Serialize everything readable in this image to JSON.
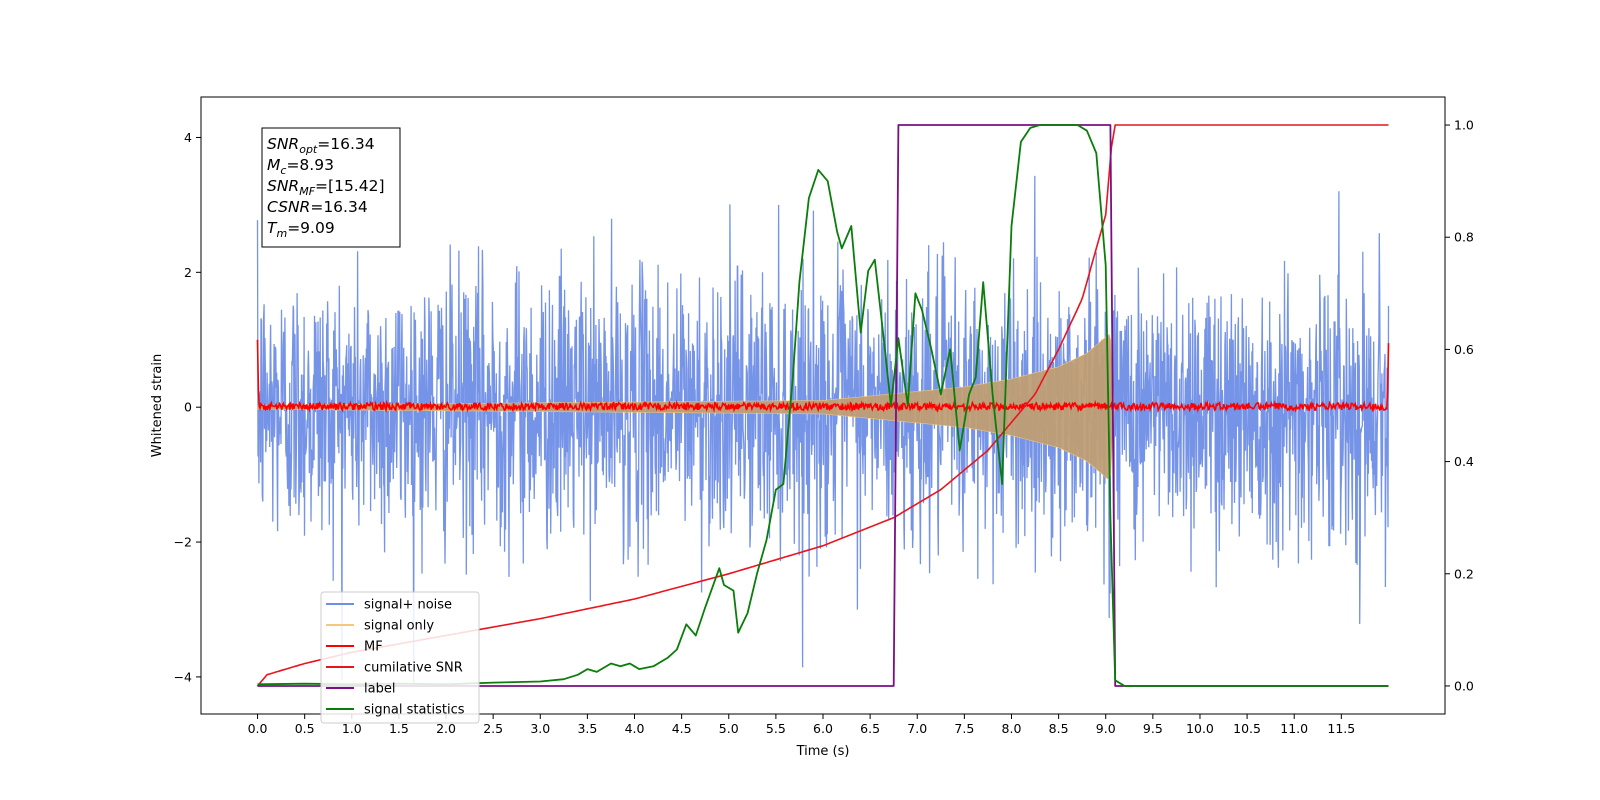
{
  "chart_data": {
    "type": "line",
    "xlabel": "Time (s)",
    "ylabel": "Whitened strain",
    "xlim": [
      -0.6,
      12.6
    ],
    "ylim": [
      -4.55,
      4.6
    ],
    "y2lim": [
      -0.05,
      1.05
    ],
    "xticks": [
      "0.0",
      "0.5",
      "1.0",
      "1.5",
      "2.0",
      "2.5",
      "3.0",
      "3.5",
      "4.0",
      "4.5",
      "5.0",
      "5.5",
      "6.0",
      "6.5",
      "7.0",
      "7.5",
      "8.0",
      "8.5",
      "9.0",
      "9.5",
      "10.0",
      "10.5",
      "11.0",
      "11.5"
    ],
    "yticks": [
      "-4",
      "-2",
      "0",
      "2",
      "4"
    ],
    "y2ticks": [
      "0.0",
      "0.2",
      "0.4",
      "0.6",
      "0.8",
      "1.0"
    ],
    "grid": false,
    "legend_position": "lower-left",
    "annotation": {
      "lines": [
        {
          "main": "SNR",
          "sub": "opt",
          "rest": "=16.34"
        },
        {
          "main": "M",
          "sub": "c",
          "rest": "=8.93"
        },
        {
          "main": "SNR",
          "sub": "MF",
          "rest": "=[15.42]"
        },
        {
          "main": "CSNR",
          "sub": "",
          "rest": "=16.34"
        },
        {
          "main": "T",
          "sub": "m",
          "rest": "=9.09"
        }
      ]
    },
    "series": [
      {
        "name": "signal+ noise",
        "axis": "left",
        "color": "#6f8ee6",
        "x_range": [
          0.0,
          12.0
        ],
        "noise_sigma": 1.0,
        "y_range_observed": [
          -4.1,
          4.15
        ]
      },
      {
        "name": "signal only",
        "axis": "left",
        "color": "#f5c77a",
        "fill_color": "#bf9f74",
        "chirp_start": 0.0,
        "merger_time": 9.09,
        "envelope": {
          "x": [
            0.0,
            6.0,
            6.75,
            7.5,
            8.0,
            8.5,
            8.8,
            9.05,
            9.09
          ],
          "y": [
            0.03,
            0.1,
            0.2,
            0.3,
            0.42,
            0.6,
            0.8,
            1.1,
            0.0
          ]
        }
      },
      {
        "name": "MF",
        "axis": "left",
        "color": "#ff0000",
        "x_range": [
          0.0,
          12.0
        ],
        "baseline": 0.0,
        "noise_amp": 0.05,
        "edge_values": {
          "start": 1.0,
          "end": 0.95
        }
      },
      {
        "name": "cumilative SNR",
        "axis": "right",
        "color": "#e8141e",
        "x": [
          0.0,
          0.1,
          0.5,
          1.0,
          2.0,
          3.0,
          4.0,
          5.0,
          6.0,
          6.75,
          7.25,
          7.75,
          8.25,
          8.5,
          8.75,
          9.0,
          9.06,
          9.1,
          12.0
        ],
        "y": [
          0.0,
          0.02,
          0.04,
          0.06,
          0.09,
          0.12,
          0.155,
          0.2,
          0.25,
          0.3,
          0.35,
          0.42,
          0.52,
          0.6,
          0.69,
          0.84,
          0.96,
          1.0,
          1.0
        ]
      },
      {
        "name": "label",
        "axis": "right",
        "color": "#7b0f82",
        "x": [
          0.0,
          6.75,
          6.8,
          9.05,
          9.1,
          12.0
        ],
        "y": [
          0.0,
          0.0,
          1.0,
          1.0,
          0.0,
          0.0
        ]
      },
      {
        "name": "signal statistics",
        "axis": "right",
        "color": "#0a7d0a",
        "x": [
          0.0,
          0.5,
          1.0,
          1.5,
          2.0,
          2.5,
          3.0,
          3.25,
          3.4,
          3.5,
          3.6,
          3.75,
          3.85,
          3.95,
          4.05,
          4.2,
          4.35,
          4.45,
          4.55,
          4.65,
          4.75,
          4.9,
          4.95,
          5.05,
          5.1,
          5.2,
          5.3,
          5.4,
          5.5,
          5.58,
          5.68,
          5.75,
          5.85,
          5.95,
          6.05,
          6.15,
          6.2,
          6.3,
          6.4,
          6.48,
          6.55,
          6.65,
          6.72,
          6.8,
          6.9,
          6.98,
          7.05,
          7.15,
          7.25,
          7.35,
          7.45,
          7.55,
          7.62,
          7.7,
          7.8,
          7.9,
          8.0,
          8.1,
          8.2,
          8.3,
          8.4,
          8.5,
          8.6,
          8.7,
          8.8,
          8.9,
          9.0,
          9.05,
          9.1,
          9.2,
          12.0
        ],
        "y": [
          0.003,
          0.004,
          0.003,
          0.004,
          0.003,
          0.006,
          0.008,
          0.012,
          0.02,
          0.03,
          0.025,
          0.04,
          0.035,
          0.04,
          0.03,
          0.035,
          0.05,
          0.065,
          0.11,
          0.09,
          0.14,
          0.21,
          0.18,
          0.17,
          0.095,
          0.13,
          0.2,
          0.26,
          0.35,
          0.36,
          0.55,
          0.72,
          0.87,
          0.92,
          0.9,
          0.81,
          0.78,
          0.82,
          0.63,
          0.74,
          0.76,
          0.61,
          0.5,
          0.62,
          0.5,
          0.7,
          0.67,
          0.6,
          0.52,
          0.6,
          0.42,
          0.52,
          0.55,
          0.72,
          0.52,
          0.36,
          0.82,
          0.97,
          0.995,
          1.0,
          1.0,
          1.0,
          1.0,
          1.0,
          0.99,
          0.95,
          0.75,
          0.3,
          0.01,
          0.0,
          0.0
        ]
      }
    ]
  }
}
